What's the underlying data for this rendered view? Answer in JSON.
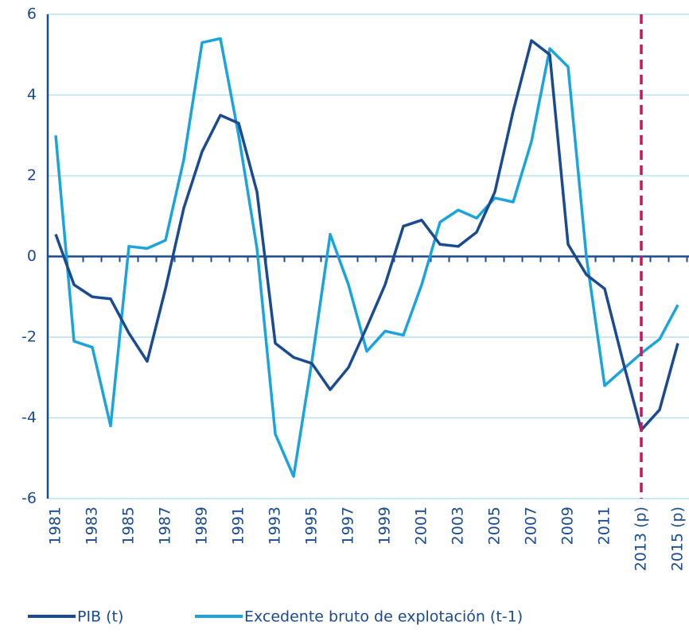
{
  "chart_data": {
    "type": "line",
    "categories": [
      "1981",
      null,
      "1983",
      null,
      "1985",
      null,
      "1987",
      null,
      "1989",
      null,
      "1991",
      null,
      "1993",
      null,
      "1995",
      null,
      "1997",
      null,
      "1999",
      null,
      "2001",
      null,
      "2003",
      null,
      "2005",
      null,
      "2007",
      null,
      "2009",
      null,
      "2011",
      null,
      "2013 (p)",
      null,
      "2015 (p)"
    ],
    "series": [
      {
        "name": "PIB (t)",
        "color": "#1a4a8f",
        "values": [
          0.55,
          -0.7,
          -1.0,
          -1.05,
          -1.9,
          -2.6,
          -0.8,
          1.2,
          2.6,
          3.5,
          3.3,
          1.6,
          -2.15,
          -2.5,
          -2.65,
          -3.3,
          -2.75,
          -1.75,
          -0.7,
          0.75,
          0.9,
          0.3,
          0.25,
          0.6,
          1.6,
          3.6,
          5.35,
          5.0,
          0.3,
          -0.45,
          -0.8,
          -2.6,
          -4.3,
          -3.8,
          -2.15
        ]
      },
      {
        "name": "Excedente bruto de explotación (t-1)",
        "color": "#1ba3dc",
        "values": [
          3.0,
          -2.1,
          -2.25,
          -4.2,
          0.25,
          0.2,
          0.4,
          2.4,
          5.3,
          5.4,
          3.0,
          0.2,
          -4.4,
          -5.45,
          -2.6,
          0.55,
          -0.7,
          -2.35,
          -1.85,
          -1.95,
          -0.7,
          0.85,
          1.15,
          0.95,
          1.45,
          1.35,
          2.85,
          5.15,
          4.7,
          0.0,
          -3.2,
          -2.8,
          -2.4,
          -2.05,
          -1.2
        ]
      }
    ],
    "ylim": [
      -6,
      6
    ],
    "yticks": [
      -6,
      -4,
      -2,
      0,
      2,
      4,
      6
    ],
    "grid": true,
    "legend": "bottom"
  }
}
